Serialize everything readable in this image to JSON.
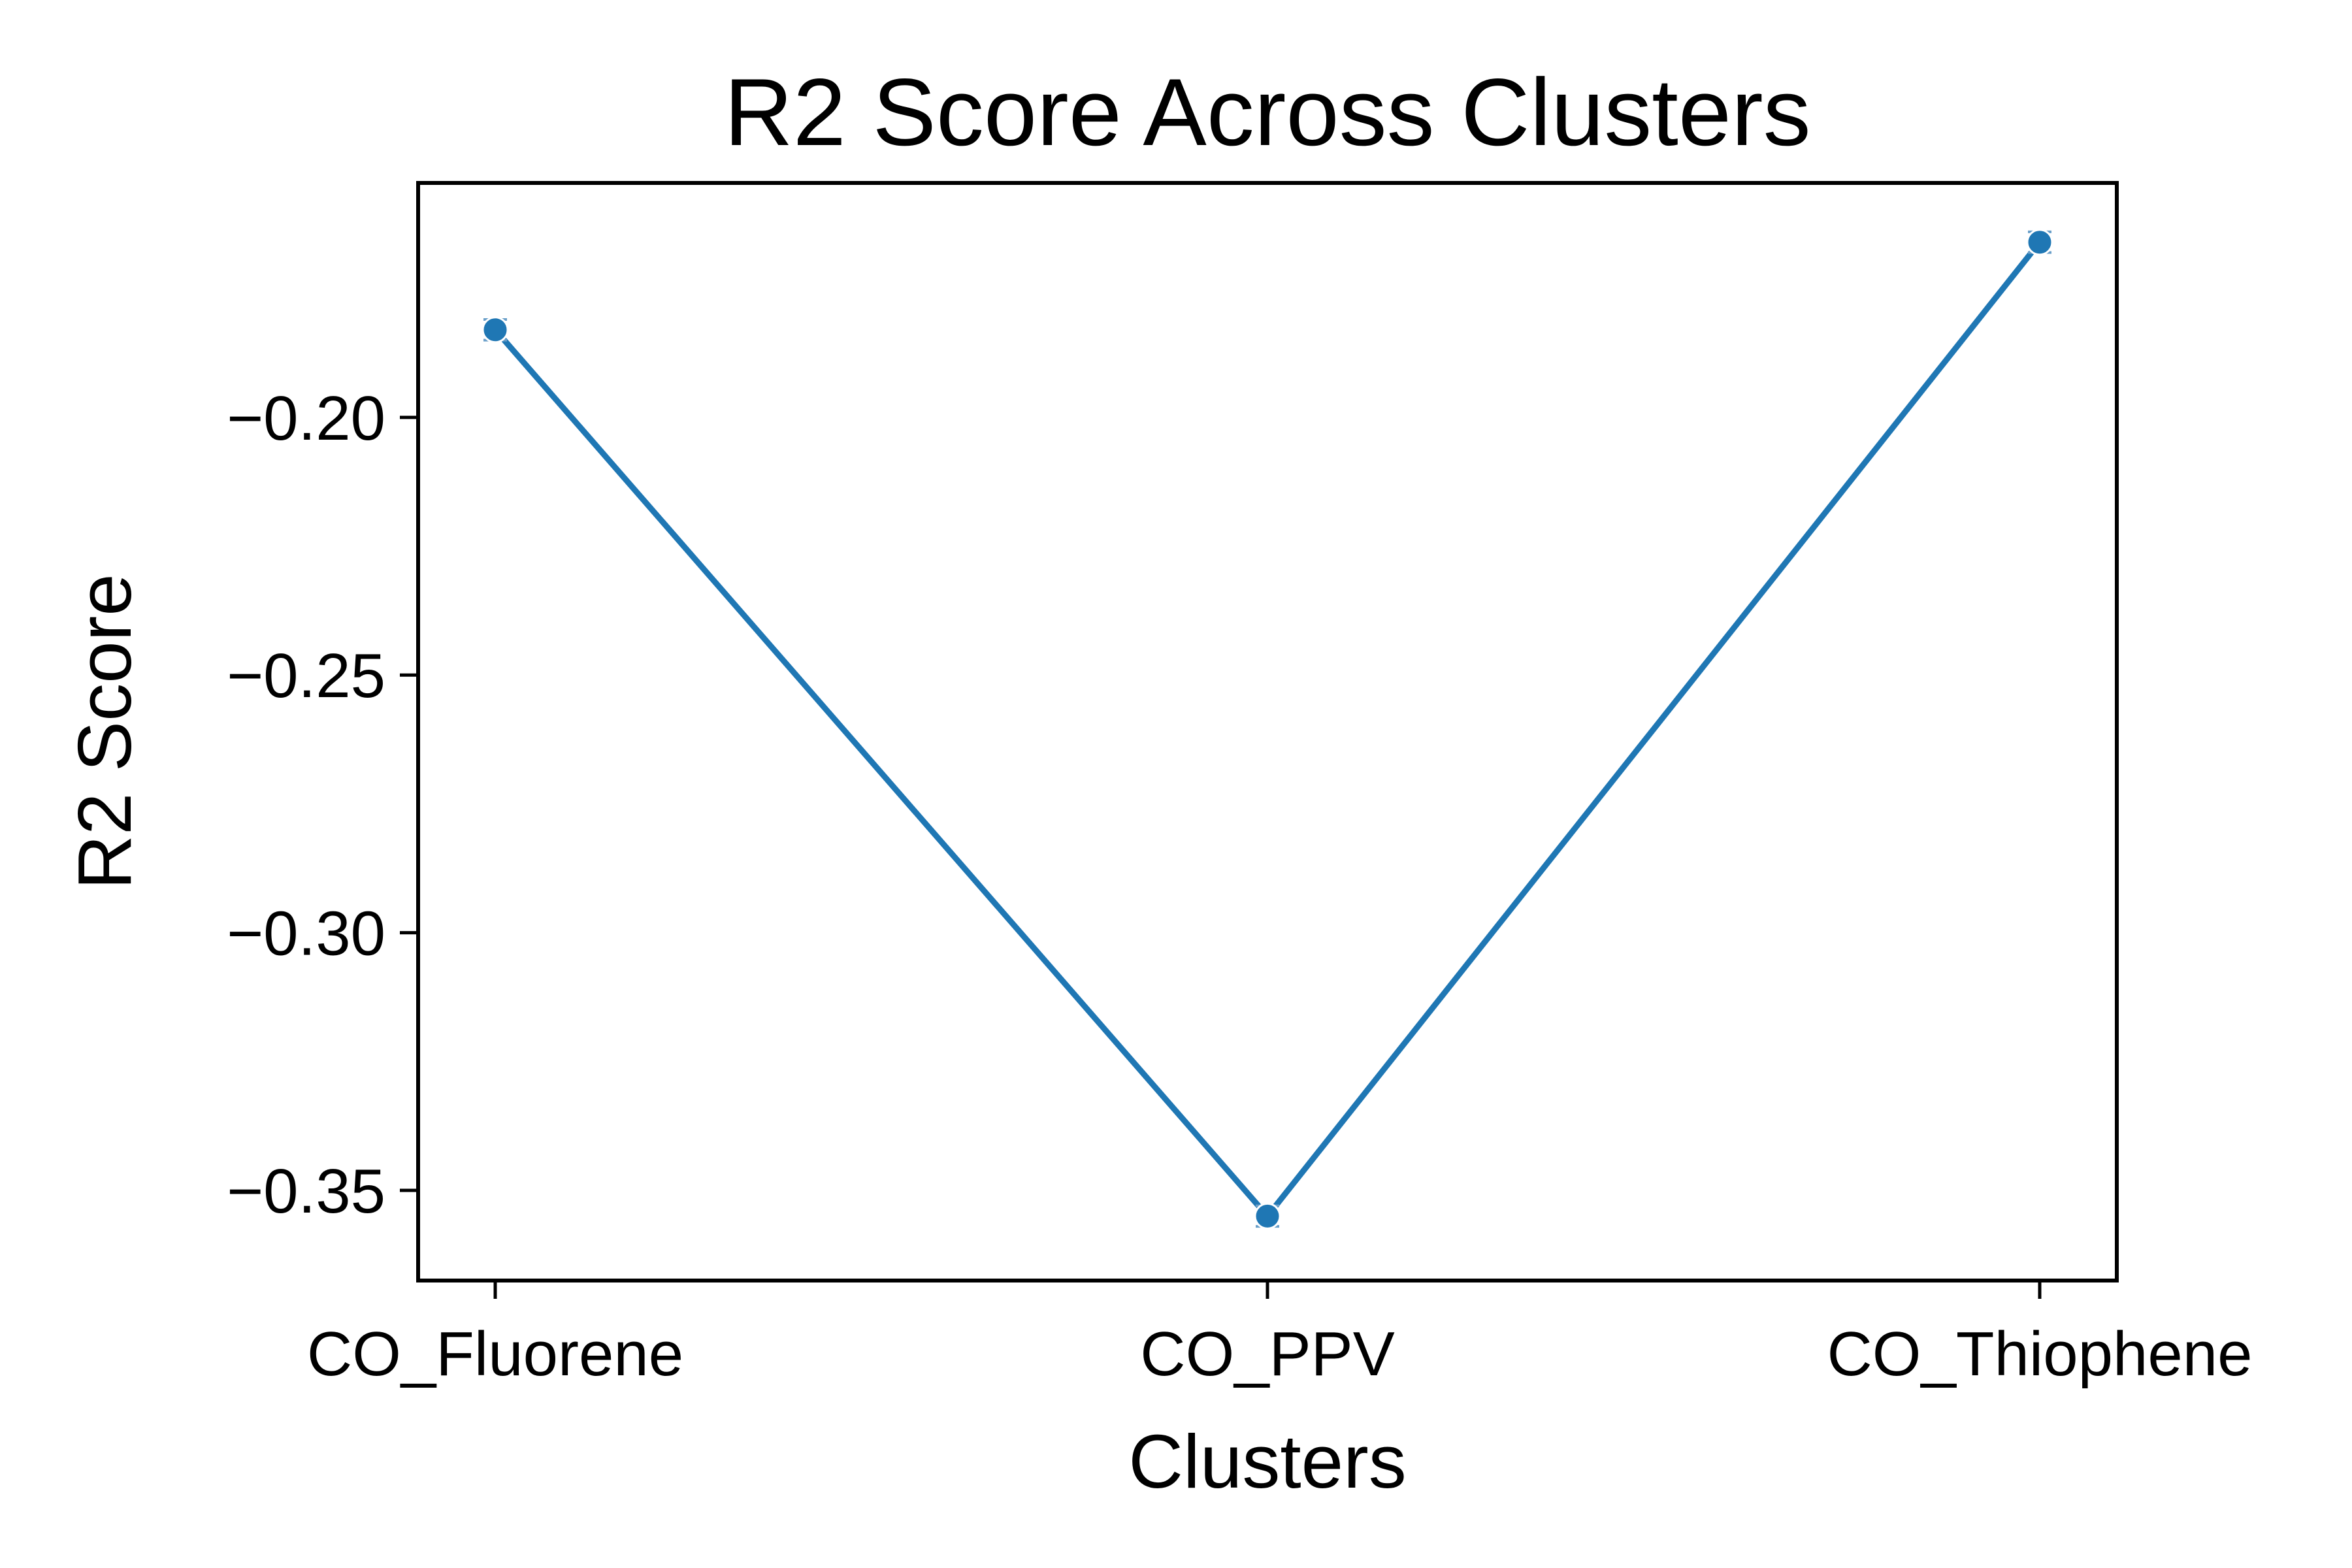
{
  "chart_data": {
    "type": "line",
    "title": "R2 Score Across Clusters",
    "xlabel": "Clusters",
    "ylabel": "R2 Score",
    "categories": [
      "CO_Fluorene",
      "CO_PPV",
      "CO_Thiophene"
    ],
    "series": [
      {
        "values": [
          -0.183,
          -0.355,
          -0.166
        ],
        "errors": [
          0.002,
          0.002,
          0.002
        ],
        "color": "#1f77b4"
      }
    ],
    "yticks": [
      -0.2,
      -0.25,
      -0.3,
      -0.35
    ],
    "ytick_labels": [
      "−0.20",
      "−0.25",
      "−0.30",
      "−0.35"
    ],
    "ylim": [
      -0.3675,
      -0.1545
    ],
    "grid": false
  }
}
